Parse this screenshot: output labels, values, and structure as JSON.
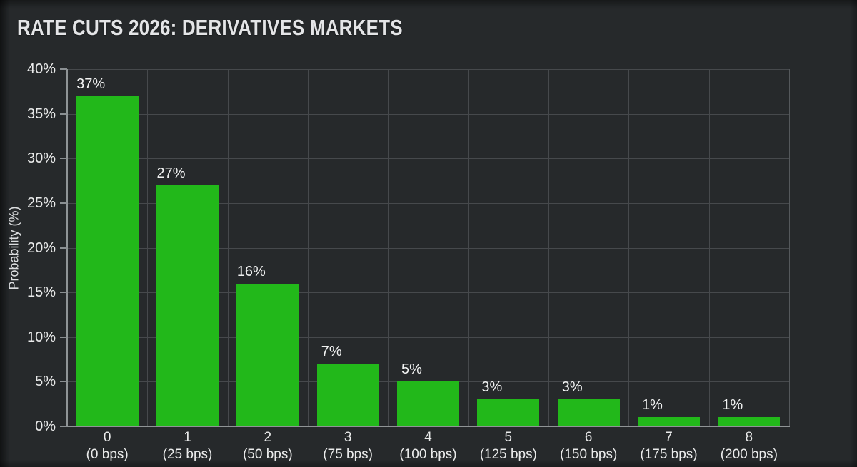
{
  "page": {
    "background_color": "#26292b",
    "text_color": "#eaebeb"
  },
  "chart_data": {
    "type": "bar",
    "title": "RATE CUTS 2026: DERIVATIVES MARKETS",
    "ylabel": "Probability (%)",
    "xlabel": "",
    "ylim": [
      0,
      40
    ],
    "ytick_values": [
      0,
      5,
      10,
      15,
      20,
      25,
      30,
      35,
      40
    ],
    "ytick_labels": [
      "0%",
      "5%",
      "10%",
      "15%",
      "20%",
      "25%",
      "30%",
      "35%",
      "40%"
    ],
    "categories": [
      "0",
      "1",
      "2",
      "3",
      "4",
      "5",
      "6",
      "7",
      "8"
    ],
    "category_sublabels": [
      "(0 bps)",
      "(25 bps)",
      "(50 bps)",
      "(75 bps)",
      "(100 bps)",
      "(125 bps)",
      "(150 bps)",
      "(175 bps)",
      "(200 bps)"
    ],
    "values": [
      37,
      27,
      16,
      7,
      5,
      3,
      3,
      1,
      1
    ],
    "value_labels": [
      "37%",
      "27%",
      "16%",
      "7%",
      "5%",
      "3%",
      "3%",
      "1%",
      "1%"
    ],
    "grid": true,
    "legend_position": "none",
    "bar_color": "#22b81a",
    "grid_color": "#46494c",
    "axis_color": "#8f9496",
    "background_color": "#26292b"
  }
}
